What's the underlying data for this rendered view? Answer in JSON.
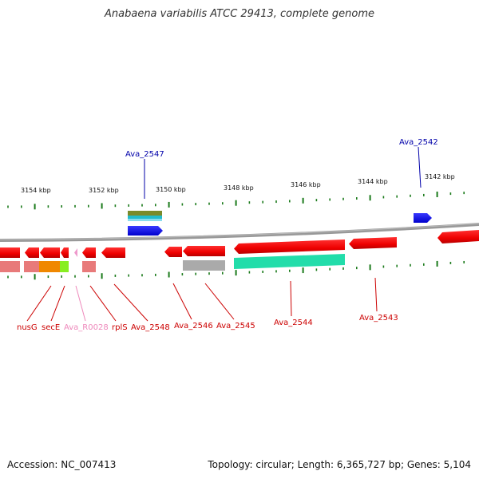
{
  "title": "Anabaena variabilis ATCC 29413, complete genome",
  "footer": {
    "accession": "Accession: NC_007413",
    "summary": "Topology: circular; Length: 6,365,727 bp; Genes: 5,104"
  },
  "colors": {
    "forward_gene": "#0000ff",
    "reverse_gene": "#ff0000",
    "tick": "#1a7a1a",
    "backbone": "#888888",
    "label_top": "#0000aa",
    "label_bottom": "#cc0000",
    "label_rna": "#ee88bb"
  },
  "ruler": [
    {
      "label": "3154 kbp"
    },
    {
      "label": "3152 kbp"
    },
    {
      "label": "3150 kbp"
    },
    {
      "label": "3148 kbp"
    },
    {
      "label": "3146 kbp"
    },
    {
      "label": "3144 kbp"
    },
    {
      "label": "3142 kbp"
    }
  ],
  "labels_top": [
    {
      "text": "Ava_2547"
    },
    {
      "text": "Ava_2542"
    }
  ],
  "labels_bottom": [
    {
      "text": "nusG"
    },
    {
      "text": "secE"
    },
    {
      "text": "Ava_R0028"
    },
    {
      "text": "rplS"
    },
    {
      "text": "Ava_2548"
    },
    {
      "text": "Ava_2546"
    },
    {
      "text": "Ava_2545"
    },
    {
      "text": "Ava_2544"
    },
    {
      "text": "Ava_2543"
    }
  ]
}
